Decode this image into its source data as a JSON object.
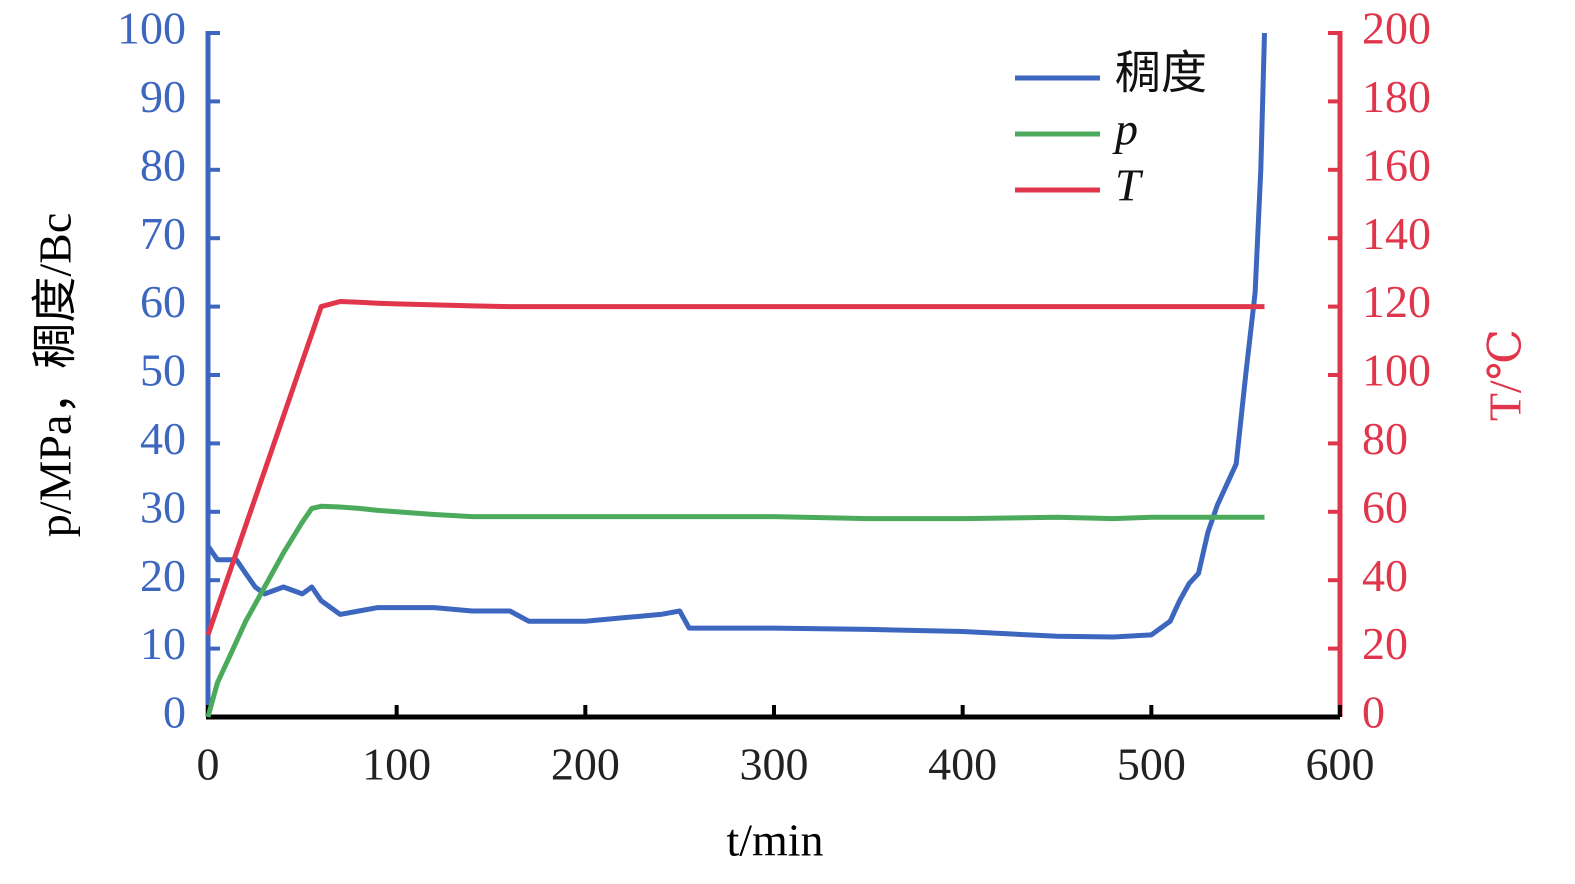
{
  "chart_data": {
    "type": "line",
    "xlabel": "t/min",
    "ylabel": "p/MPa，稠度/Bc",
    "y2label": "T/℃",
    "x": [
      0,
      5,
      10,
      15,
      20,
      25,
      30,
      40,
      50,
      55,
      60,
      70,
      80,
      90,
      100,
      120,
      140,
      160,
      170,
      200,
      220,
      240,
      250,
      255,
      260,
      300,
      350,
      400,
      450,
      480,
      500,
      510,
      515,
      520,
      525,
      530,
      535,
      540,
      545,
      550,
      555,
      558,
      560
    ],
    "series": [
      {
        "name": "稠度",
        "color": "#3d66bf",
        "axis": "y",
        "values": [
          25,
          23,
          23,
          23,
          21,
          19,
          18,
          19,
          18,
          19,
          17,
          15,
          15.5,
          16,
          16,
          16,
          15.5,
          15.5,
          14,
          14,
          14.5,
          15,
          15.5,
          13,
          13,
          13,
          12.8,
          12.5,
          11.8,
          11.7,
          12,
          14,
          17,
          19.5,
          21,
          27,
          31,
          34,
          37,
          50,
          62,
          80,
          100
        ]
      },
      {
        "name": "p",
        "color": "#4caa5c",
        "axis": "y",
        "values": [
          0,
          5,
          8,
          11,
          14,
          16.5,
          19,
          24,
          28.5,
          30.5,
          30.8,
          30.7,
          30.5,
          30.2,
          30,
          29.6,
          29.3,
          29.3,
          29.3,
          29.3,
          29.3,
          29.3,
          29.3,
          29.3,
          29.3,
          29.3,
          29,
          29,
          29.2,
          29,
          29.2,
          29.2,
          29.2,
          29.2,
          29.2,
          29.2,
          29.2,
          29.2,
          29.2,
          29.2,
          29.2,
          29.2,
          29.2
        ]
      },
      {
        "name": "T",
        "color": "#e0354b",
        "axis": "y2",
        "values": [
          24,
          32,
          40,
          48,
          56,
          64,
          72,
          88,
          104,
          112,
          120,
          121.5,
          121.3,
          121,
          120.8,
          120.5,
          120.2,
          120,
          120,
          120,
          120,
          120,
          120,
          120,
          120,
          120,
          120,
          120,
          120,
          120,
          120,
          120,
          120,
          120,
          120,
          120,
          120,
          120,
          120,
          120,
          120,
          120,
          120
        ]
      }
    ],
    "xlim": [
      0,
      600
    ],
    "xticks": [
      0,
      100,
      200,
      300,
      400,
      500,
      600
    ],
    "ylim": [
      0,
      100
    ],
    "yticks": [
      0,
      10,
      20,
      30,
      40,
      50,
      60,
      70,
      80,
      90,
      100
    ],
    "y2lim": [
      0,
      200
    ],
    "y2ticks": [
      0,
      20,
      40,
      60,
      80,
      100,
      120,
      140,
      160,
      180,
      200
    ],
    "legend": "upper right"
  }
}
